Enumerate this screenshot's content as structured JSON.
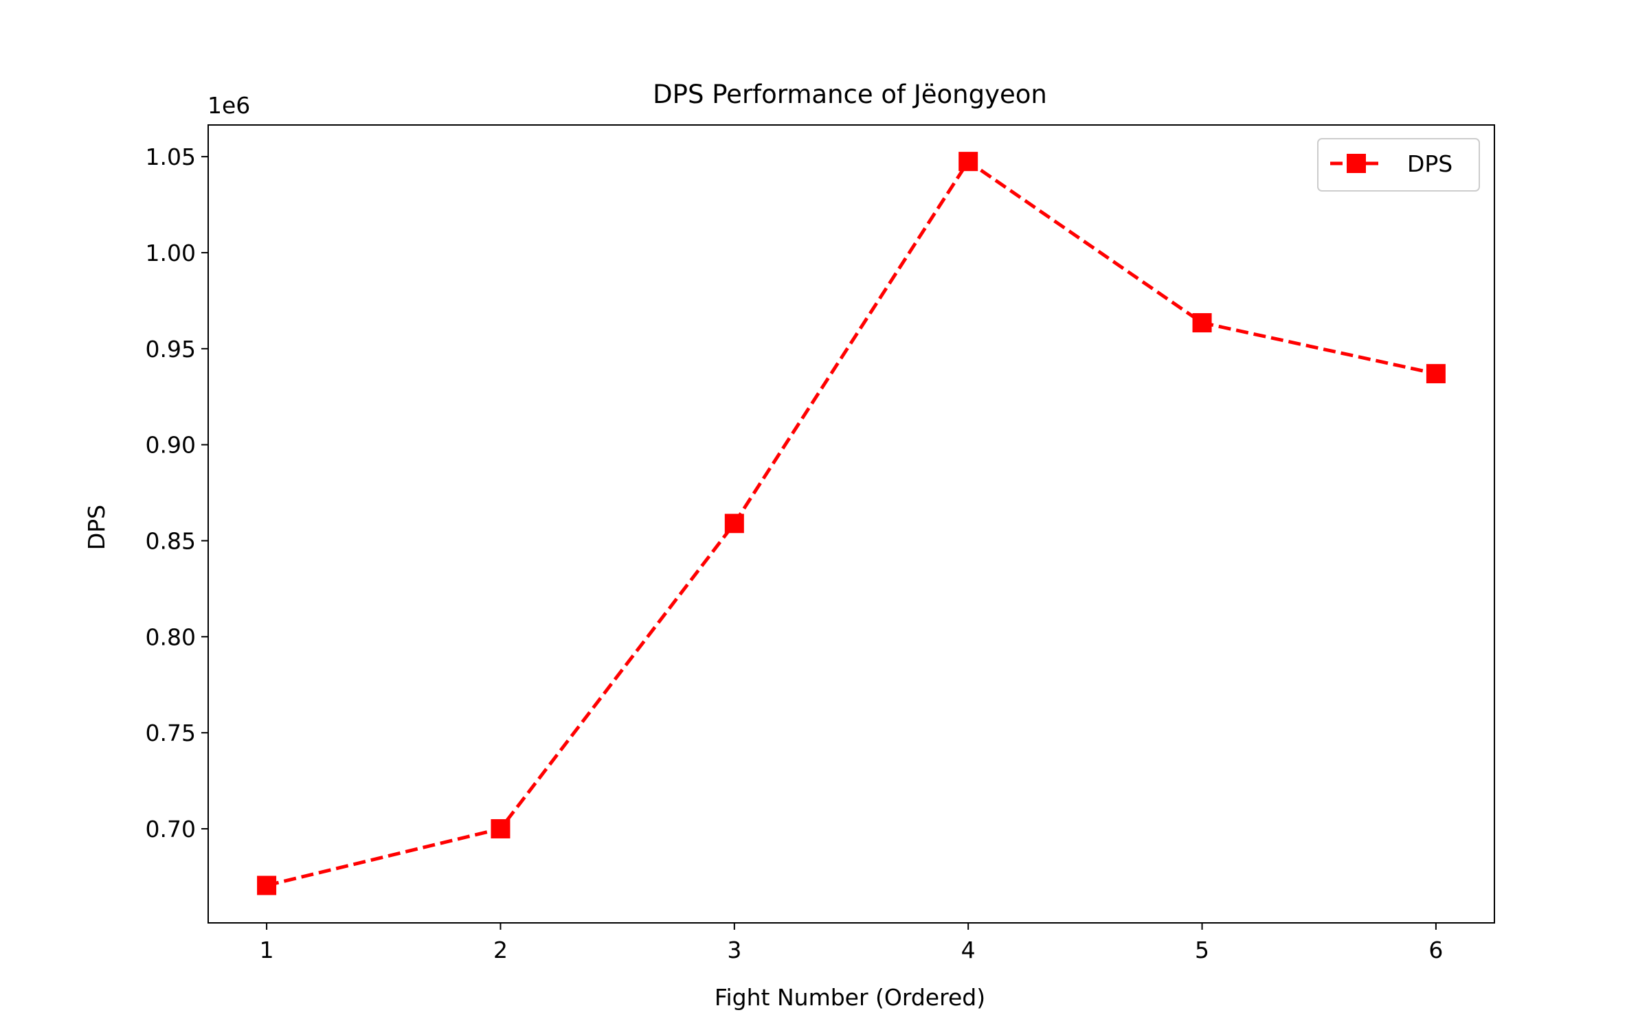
{
  "chart_data": {
    "type": "line",
    "title": "DPS Performance of Jëongyeon",
    "xlabel": "Fight Number (Ordered)",
    "ylabel": "DPS",
    "offset_text": "1e6",
    "x": [
      1,
      2,
      3,
      4,
      5,
      6
    ],
    "x_ticks": [
      "1",
      "2",
      "3",
      "4",
      "5",
      "6"
    ],
    "y_ticks": [
      {
        "value": 700000,
        "label": "0.70"
      },
      {
        "value": 750000,
        "label": "0.75"
      },
      {
        "value": 800000,
        "label": "0.80"
      },
      {
        "value": 850000,
        "label": "0.85"
      },
      {
        "value": 900000,
        "label": "0.90"
      },
      {
        "value": 950000,
        "label": "0.95"
      },
      {
        "value": 1000000,
        "label": "1.00"
      },
      {
        "value": 1050000,
        "label": "1.05"
      }
    ],
    "xlim": [
      0.75,
      6.25
    ],
    "ylim": [
      651000,
      1066500
    ],
    "series": [
      {
        "name": "DPS",
        "color": "#ff0000",
        "line_style": "dashed",
        "marker": "square",
        "values": [
          670500,
          700000,
          859000,
          1047500,
          963500,
          937000
        ]
      }
    ],
    "legend_position": "top-right",
    "grid": false
  }
}
